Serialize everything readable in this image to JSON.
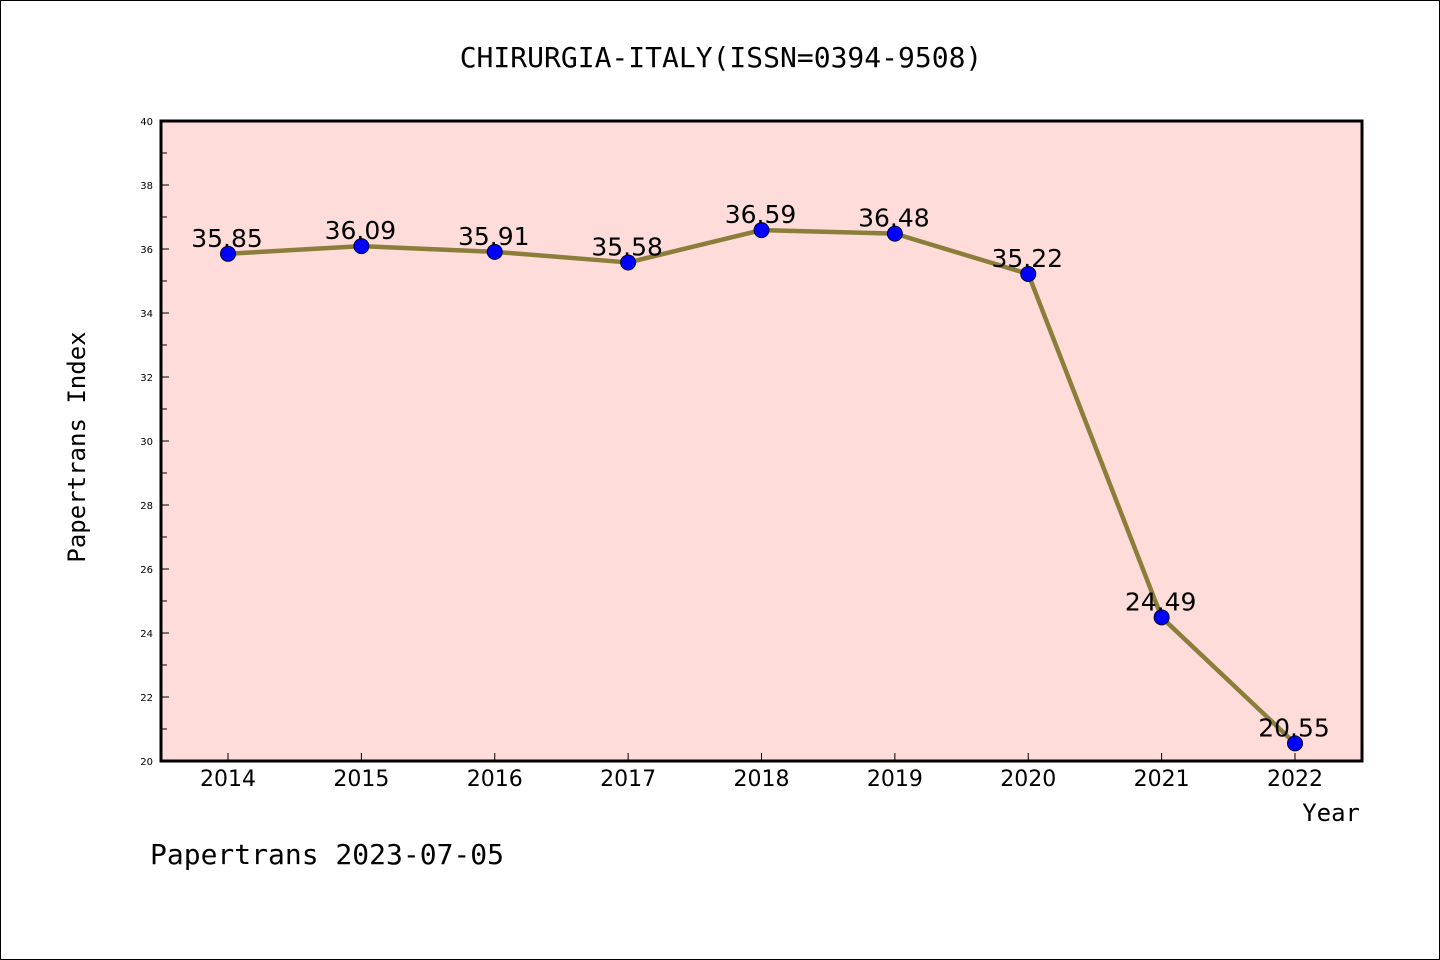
{
  "chart_data": {
    "type": "line",
    "title": "CHIRURGIA-ITALY(ISSN=0394-9508)",
    "xlabel": "Year",
    "ylabel": "Papertrans Index",
    "categories": [
      "2014",
      "2015",
      "2016",
      "2017",
      "2018",
      "2019",
      "2020",
      "2021",
      "2022"
    ],
    "series": [
      {
        "values": [
          35.85,
          36.09,
          35.91,
          35.58,
          36.59,
          36.48,
          35.22,
          24.49,
          20.55
        ],
        "labels": [
          "35.85",
          "36.09",
          "35.91",
          "35.58",
          "36.59",
          "36.48",
          "35.22",
          "24.49",
          "20.55"
        ],
        "line_color": "#8b7d3a",
        "marker_color": "#0000ff"
      }
    ],
    "ylim": [
      20,
      40
    ],
    "yticks": [
      "20",
      "22",
      "24",
      "26",
      "28",
      "30",
      "32",
      "34",
      "36",
      "38",
      "40"
    ],
    "plot_background": "#fddcda",
    "grid": false,
    "legend": "none"
  },
  "footer": {
    "text": "Papertrans 2023-07-05"
  }
}
